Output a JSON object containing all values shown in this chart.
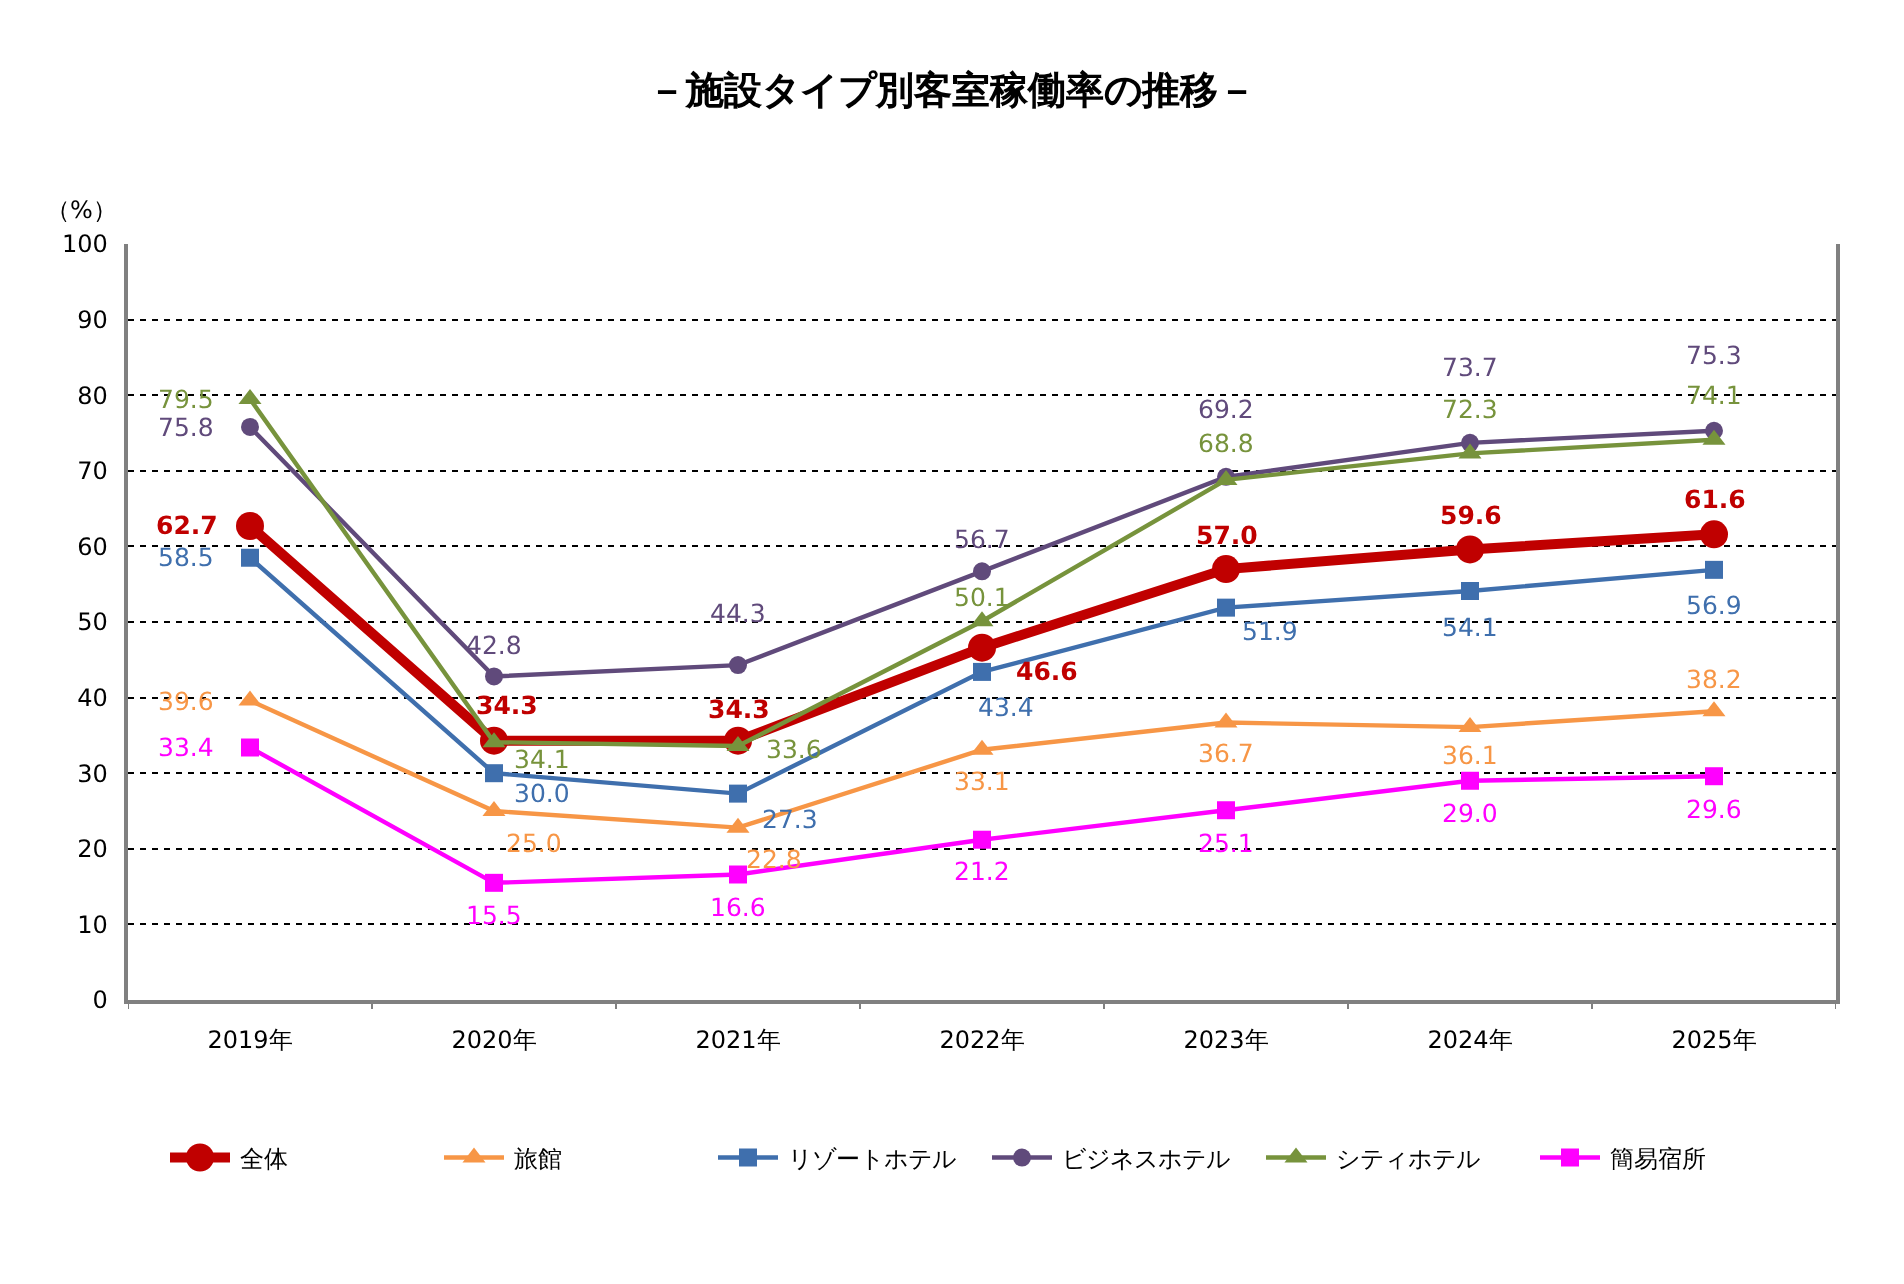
{
  "chart_data": {
    "type": "line",
    "title": "－施設タイプ別客室稼働率の推移－",
    "ylabel": "（%）",
    "categories": [
      "2019年",
      "2020年",
      "2021年",
      "2022年",
      "2023年",
      "2024年",
      "2025年"
    ],
    "series": [
      {
        "name": "全体",
        "color": "#c00000",
        "marker": "circle",
        "values": [
          62.7,
          34.3,
          34.3,
          46.6,
          57.0,
          59.6,
          61.6
        ],
        "value_labels": [
          "62.7",
          "34.3",
          "34.3",
          "46.6",
          "57.0",
          "59.6",
          "61.6"
        ]
      },
      {
        "name": "旅館",
        "color": "#f79646",
        "marker": "triangle",
        "values": [
          39.6,
          25.0,
          22.8,
          33.1,
          36.7,
          36.1,
          38.2
        ],
        "value_labels": [
          "39.6",
          "25.0",
          "22.8",
          "33.1",
          "36.7",
          "36.1",
          "38.2"
        ]
      },
      {
        "name": "リゾートホテル",
        "color": "#3f6fad",
        "marker": "square",
        "values": [
          58.5,
          30.0,
          27.3,
          43.4,
          51.9,
          54.1,
          56.9
        ],
        "value_labels": [
          "58.5",
          "30.0",
          "27.3",
          "43.4",
          "51.9",
          "54.1",
          "56.9"
        ]
      },
      {
        "name": "ビジネスホテル",
        "color": "#604a7b",
        "marker": "circle",
        "values": [
          75.8,
          42.8,
          44.3,
          56.7,
          69.2,
          73.7,
          75.3
        ],
        "value_labels": [
          "75.8",
          "42.8",
          "44.3",
          "56.7",
          "69.2",
          "73.7",
          "75.3"
        ]
      },
      {
        "name": "シティホテル",
        "color": "#77933c",
        "marker": "triangle",
        "values": [
          79.5,
          34.1,
          33.6,
          50.1,
          68.8,
          72.3,
          74.1
        ],
        "value_labels": [
          "79.5",
          "34.1",
          "33.6",
          "50.1",
          "68.8",
          "72.3",
          "74.1"
        ]
      },
      {
        "name": "簡易宿所",
        "color": "#ff00ff",
        "marker": "square",
        "values": [
          33.4,
          15.5,
          16.6,
          21.2,
          25.1,
          29.0,
          29.6
        ],
        "value_labels": [
          "33.4",
          "15.5",
          "16.6",
          "21.2",
          "25.1",
          "29.0",
          "29.6"
        ]
      }
    ],
    "ylim": [
      0,
      100
    ],
    "yticks": [
      0,
      10,
      20,
      30,
      40,
      50,
      60,
      70,
      80,
      90,
      100
    ],
    "grid": "y",
    "legend": "bottom",
    "line_style": "solid"
  }
}
